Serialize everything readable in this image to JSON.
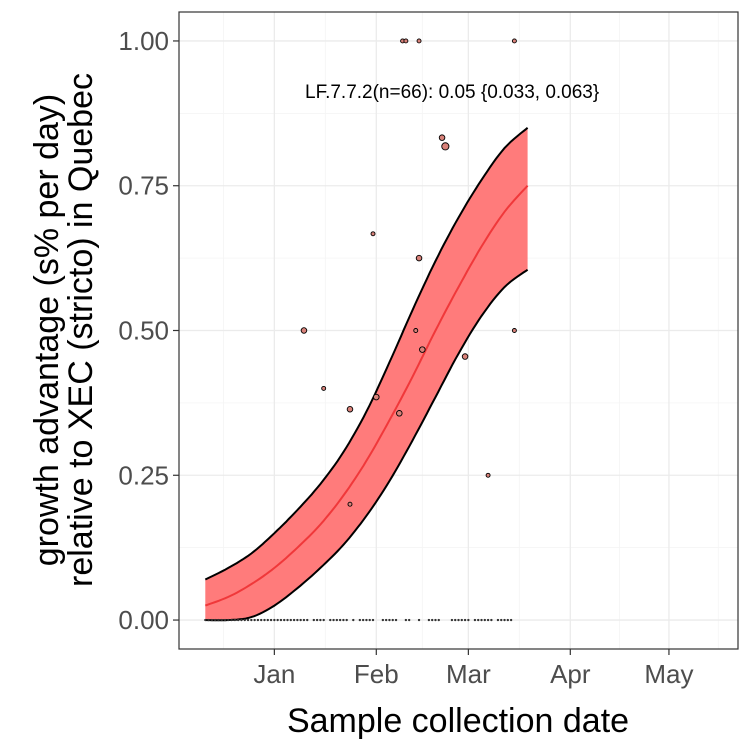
{
  "chart_data": {
    "type": "line",
    "title": "",
    "xlabel": "Sample collection date",
    "ylabel_lines": [
      "growth advantage (s% per day)",
      "relative to XEC (stricto) in Quebec"
    ],
    "x_ticks": [
      {
        "label": "Jan",
        "date": "2025-01-01"
      },
      {
        "label": "Feb",
        "date": "2025-02-01"
      },
      {
        "label": "Mar",
        "date": "2025-03-01"
      },
      {
        "label": "Apr",
        "date": "2025-04-01"
      },
      {
        "label": "May",
        "date": "2025-05-01"
      }
    ],
    "y_ticks": [
      "0.00",
      "0.25",
      "0.50",
      "0.75",
      "1.00"
    ],
    "xlim": [
      "2024-12-03",
      "2025-05-22"
    ],
    "ylim": [
      -0.05,
      1.05
    ],
    "grid": true,
    "annotation": "LF.7.7.2(n=66): 0.05 {0.033, 0.063}",
    "colors": {
      "fit": "#f0383a",
      "band": "#ff7b7b",
      "band_edge": "#000000",
      "point_fill": "#d9827a",
      "point_edge": "#000000"
    },
    "fit": {
      "x": [
        "2024-12-11",
        "2024-12-18",
        "2024-12-25",
        "2025-01-01",
        "2025-01-08",
        "2025-01-15",
        "2025-01-22",
        "2025-01-29",
        "2025-02-05",
        "2025-02-12",
        "2025-02-19",
        "2025-02-26",
        "2025-03-05",
        "2025-03-12",
        "2025-03-19"
      ],
      "mean": [
        0.025,
        0.04,
        0.062,
        0.09,
        0.125,
        0.165,
        0.215,
        0.275,
        0.345,
        0.42,
        0.5,
        0.575,
        0.645,
        0.705,
        0.75
      ],
      "lower": [
        0.0,
        0.0,
        0.005,
        0.025,
        0.055,
        0.09,
        0.13,
        0.18,
        0.24,
        0.31,
        0.385,
        0.46,
        0.525,
        0.575,
        0.605
      ],
      "upper": [
        0.07,
        0.09,
        0.115,
        0.15,
        0.19,
        0.235,
        0.29,
        0.36,
        0.445,
        0.535,
        0.62,
        0.695,
        0.76,
        0.815,
        0.85
      ]
    },
    "points": [
      {
        "x": "2025-01-10",
        "y": 0.5,
        "size": 2
      },
      {
        "x": "2025-01-16",
        "y": 0.4,
        "size": 1
      },
      {
        "x": "2025-01-24",
        "y": 0.364,
        "size": 2
      },
      {
        "x": "2025-01-24",
        "y": 0.2,
        "size": 1
      },
      {
        "x": "2025-01-31",
        "y": 0.667,
        "size": 1
      },
      {
        "x": "2025-02-01",
        "y": 0.385,
        "size": 2
      },
      {
        "x": "2025-02-08",
        "y": 0.357,
        "size": 2
      },
      {
        "x": "2025-02-09",
        "y": 1.0,
        "size": 1
      },
      {
        "x": "2025-02-10",
        "y": 1.0,
        "size": 1
      },
      {
        "x": "2025-02-13",
        "y": 0.5,
        "size": 1
      },
      {
        "x": "2025-02-15",
        "y": 0.467,
        "size": 2
      },
      {
        "x": "2025-02-14",
        "y": 0.625,
        "size": 2
      },
      {
        "x": "2025-02-14",
        "y": 1.0,
        "size": 1
      },
      {
        "x": "2025-02-21",
        "y": 0.833,
        "size": 2
      },
      {
        "x": "2025-02-22",
        "y": 0.818,
        "size": 3
      },
      {
        "x": "2025-02-28",
        "y": 0.455,
        "size": 2
      },
      {
        "x": "2025-03-07",
        "y": 0.25,
        "size": 1
      },
      {
        "x": "2025-03-15",
        "y": 1.0,
        "size": 1
      },
      {
        "x": "2025-03-15",
        "y": 0.5,
        "size": 1
      }
    ],
    "zero_points": {
      "y": 0,
      "x": [
        "2024-12-11",
        "2024-12-12",
        "2024-12-13",
        "2024-12-14",
        "2024-12-15",
        "2024-12-16",
        "2024-12-17",
        "2024-12-18",
        "2024-12-19",
        "2024-12-20",
        "2024-12-21",
        "2024-12-22",
        "2024-12-23",
        "2024-12-24",
        "2024-12-25",
        "2024-12-26",
        "2024-12-27",
        "2024-12-28",
        "2024-12-29",
        "2024-12-30",
        "2024-12-31",
        "2025-01-01",
        "2025-01-02",
        "2025-01-03",
        "2025-01-04",
        "2025-01-05",
        "2025-01-06",
        "2025-01-07",
        "2025-01-08",
        "2025-01-09",
        "2025-01-10",
        "2025-01-11",
        "2025-01-13",
        "2025-01-14",
        "2025-01-15",
        "2025-01-16",
        "2025-01-18",
        "2025-01-19",
        "2025-01-20",
        "2025-01-21",
        "2025-01-22",
        "2025-01-23",
        "2025-01-25",
        "2025-01-27",
        "2025-01-28",
        "2025-01-29",
        "2025-01-30",
        "2025-01-31",
        "2025-02-03",
        "2025-02-04",
        "2025-02-05",
        "2025-02-06",
        "2025-02-07",
        "2025-02-10",
        "2025-02-11",
        "2025-02-14",
        "2025-02-17",
        "2025-02-18",
        "2025-02-19",
        "2025-02-20",
        "2025-02-24",
        "2025-02-25",
        "2025-02-26",
        "2025-02-27",
        "2025-02-28",
        "2025-03-01",
        "2025-03-03",
        "2025-03-04",
        "2025-03-05",
        "2025-03-06",
        "2025-03-07",
        "2025-03-08",
        "2025-03-10",
        "2025-03-11",
        "2025-03-12",
        "2025-03-13",
        "2025-03-14"
      ]
    }
  }
}
